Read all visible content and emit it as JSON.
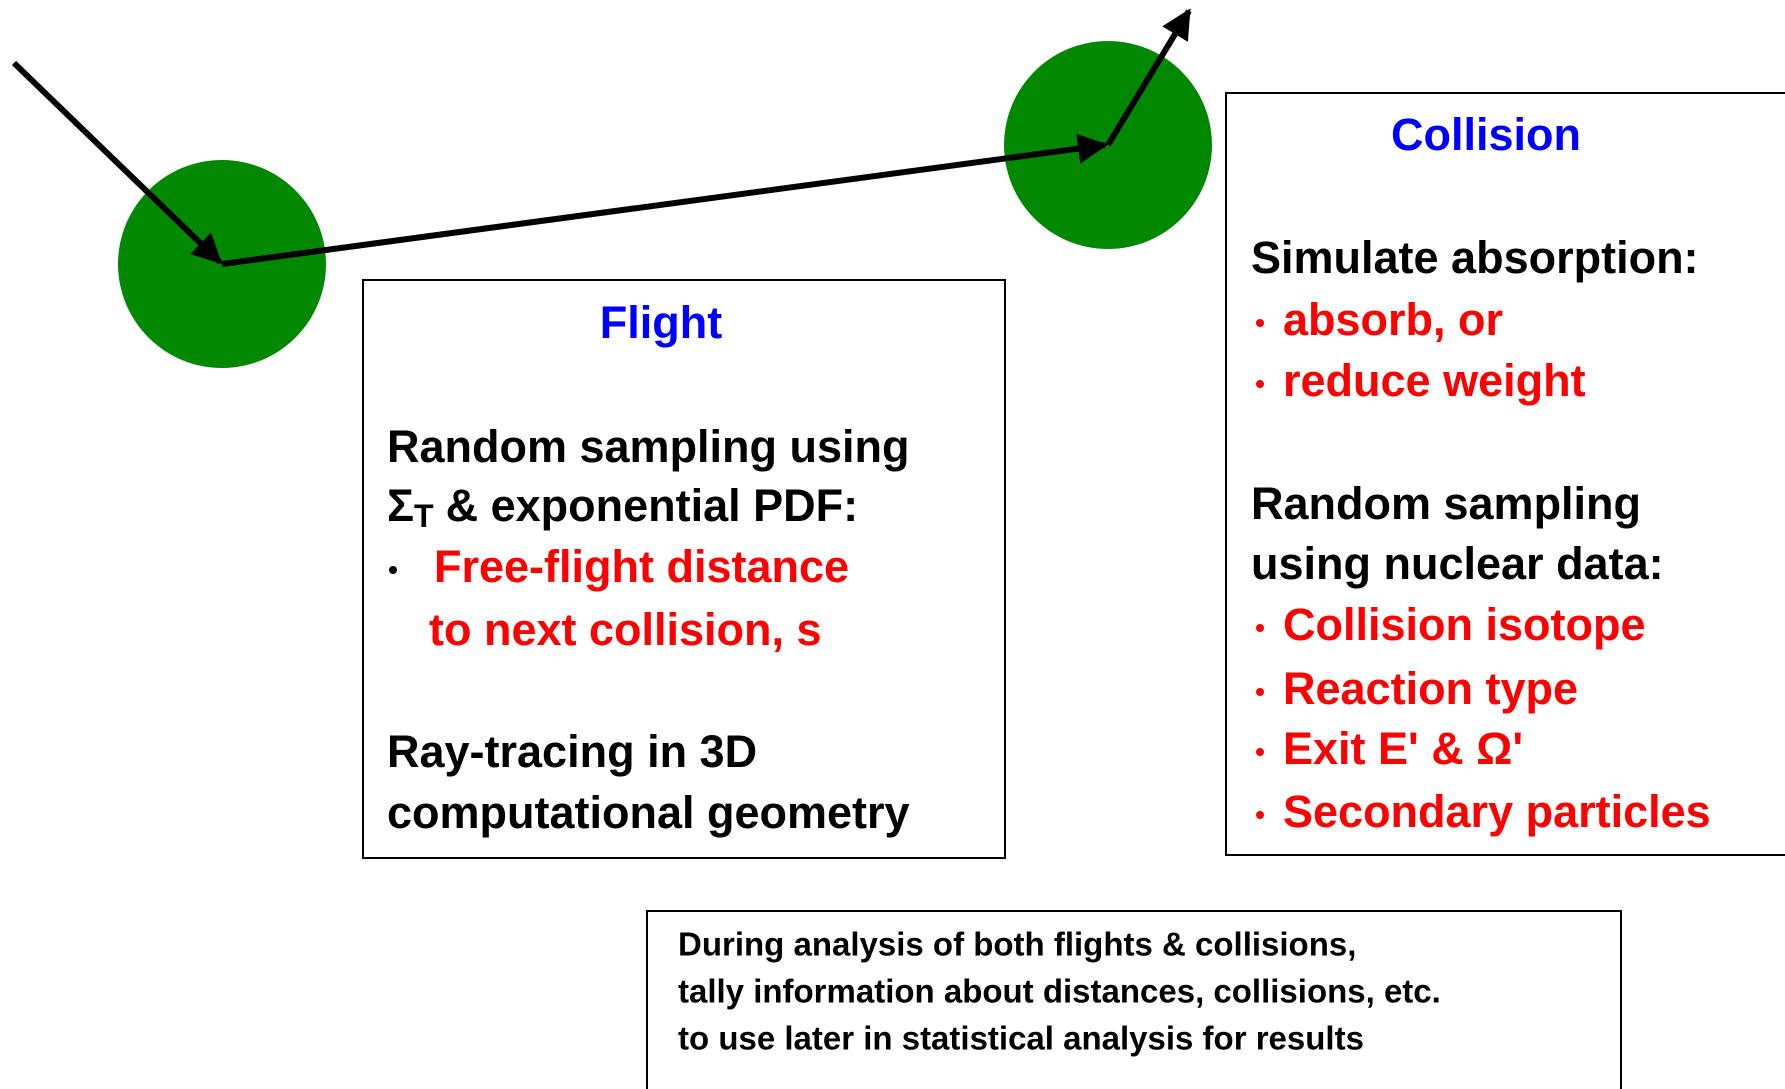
{
  "flight": {
    "title": "Flight",
    "lines": [
      "Random sampling using"
    ],
    "sigma": {
      "symbol": "Σ",
      "subscript": "T",
      "rest": "& exponential PDF:"
    },
    "bullets": [
      "Free-flight distance",
      "to next collision, s"
    ],
    "footer": [
      "Ray-tracing in 3D",
      "computational geometry"
    ]
  },
  "collision": {
    "title": "Collision",
    "heading1": "Simulate absorption:",
    "bullets1": [
      "absorb,   or",
      "reduce weight"
    ],
    "heading2": [
      "Random sampling",
      "using nuclear data:"
    ],
    "bullets2": [
      "Collision isotope",
      "Reaction type",
      "Exit  E'  &  Ω'",
      "Secondary particles"
    ]
  },
  "tally": {
    "lines": [
      "During analysis of both flights & collisions,",
      "tally information about distances, collisions, etc.",
      "to use later in statistical analysis for results"
    ]
  }
}
